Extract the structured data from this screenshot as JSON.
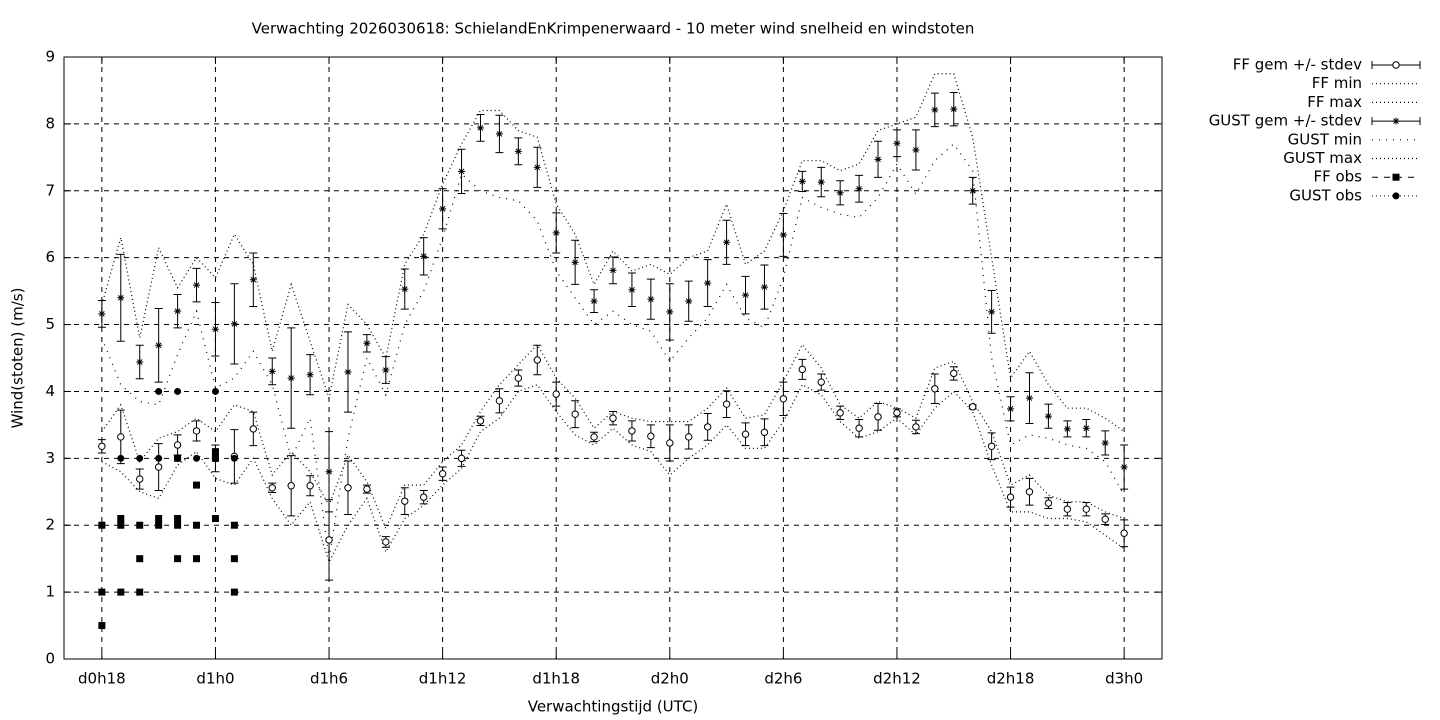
{
  "chart_data": {
    "type": "errorbar",
    "title": "Verwachting 2026030618: SchielandEnKrimpenerwaard - 10 meter wind snelheid en windstoten",
    "x_label": "Verwachtingstijd (UTC)",
    "y_label": "Wind(stoten) (m/s)",
    "xlim": [
      16,
      74
    ],
    "ylim": [
      0,
      9
    ],
    "xticks": [
      {
        "value": 18,
        "label": "d0h18"
      },
      {
        "value": 24,
        "label": "d1h0"
      },
      {
        "value": 30,
        "label": "d1h6"
      },
      {
        "value": 36,
        "label": "d1h12"
      },
      {
        "value": 42,
        "label": "d1h18"
      },
      {
        "value": 48,
        "label": "d2h0"
      },
      {
        "value": 54,
        "label": "d2h6"
      },
      {
        "value": 60,
        "label": "d2h12"
      },
      {
        "value": 66,
        "label": "d2h18"
      },
      {
        "value": 72,
        "label": "d3h0"
      }
    ],
    "yticks": [
      0,
      1,
      2,
      3,
      4,
      5,
      6,
      7,
      8,
      9
    ],
    "grid": true,
    "legend": "outside-top-right",
    "x": [
      18,
      19,
      20,
      21,
      22,
      23,
      24,
      25,
      26,
      27,
      28,
      29,
      30,
      31,
      32,
      33,
      34,
      35,
      36,
      37,
      38,
      39,
      40,
      41,
      42,
      43,
      44,
      45,
      46,
      47,
      48,
      49,
      50,
      51,
      52,
      53,
      54,
      55,
      56,
      57,
      58,
      59,
      60,
      61,
      62,
      63,
      64,
      65,
      66,
      67,
      68,
      69,
      70,
      71,
      72
    ],
    "series": [
      {
        "name": "FF gem +/- stdev",
        "color": "#000000",
        "style": "errorbar",
        "marker": "open-circle",
        "values": [
          3.18,
          3.32,
          2.69,
          2.87,
          3.2,
          3.41,
          3.0,
          3.03,
          3.44,
          2.56,
          2.59,
          2.59,
          1.78,
          2.56,
          2.54,
          1.75,
          2.36,
          2.42,
          2.77,
          3.0,
          3.56,
          3.86,
          4.2,
          4.47,
          3.96,
          3.66,
          3.32,
          3.6,
          3.41,
          3.33,
          3.23,
          3.32,
          3.47,
          3.81,
          3.36,
          3.39,
          3.89,
          4.33,
          4.14,
          3.68,
          3.45,
          3.62,
          3.68,
          3.47,
          4.04,
          4.27,
          3.77,
          3.18,
          2.42,
          2.5,
          2.33,
          2.24,
          2.24,
          2.09,
          1.88
        ],
        "errors": [
          0.1,
          0.4,
          0.15,
          0.35,
          0.15,
          0.15,
          0.2,
          0.4,
          0.25,
          0.07,
          0.45,
          0.15,
          0.6,
          0.4,
          0.06,
          0.08,
          0.2,
          0.1,
          0.1,
          0.12,
          0.07,
          0.18,
          0.12,
          0.22,
          0.18,
          0.2,
          0.07,
          0.1,
          0.15,
          0.17,
          0.27,
          0.18,
          0.2,
          0.2,
          0.17,
          0.2,
          0.25,
          0.15,
          0.12,
          0.1,
          0.13,
          0.2,
          0.06,
          0.1,
          0.22,
          0.1,
          0.03,
          0.2,
          0.15,
          0.2,
          0.08,
          0.1,
          0.1,
          0.08,
          0.2
        ]
      },
      {
        "name": "FF min",
        "color": "#000000",
        "style": "dotted",
        "values": [
          2.95,
          2.8,
          2.5,
          2.4,
          2.9,
          3.1,
          2.7,
          2.6,
          3.0,
          2.4,
          2.0,
          2.35,
          1.45,
          2.0,
          2.4,
          1.6,
          2.1,
          2.3,
          2.6,
          2.85,
          3.4,
          3.6,
          4.0,
          4.1,
          3.7,
          3.35,
          3.2,
          3.45,
          3.2,
          3.1,
          2.75,
          3.0,
          3.2,
          3.5,
          3.15,
          3.15,
          3.55,
          4.1,
          3.95,
          3.55,
          3.3,
          3.4,
          3.6,
          3.35,
          3.75,
          4.0,
          3.7,
          2.9,
          2.2,
          2.2,
          2.1,
          2.1,
          2.05,
          1.85,
          1.65
        ]
      },
      {
        "name": "FF max",
        "color": "#000000",
        "style": "dotted",
        "values": [
          3.4,
          3.8,
          2.95,
          3.3,
          3.4,
          3.6,
          3.4,
          3.8,
          3.7,
          2.75,
          3.1,
          2.8,
          2.3,
          3.05,
          2.65,
          1.95,
          2.6,
          2.6,
          2.95,
          3.2,
          3.7,
          4.1,
          4.4,
          4.7,
          4.2,
          3.9,
          3.45,
          3.7,
          3.6,
          3.55,
          3.55,
          3.55,
          3.75,
          4.05,
          3.6,
          3.65,
          4.15,
          4.7,
          4.35,
          3.8,
          3.6,
          3.85,
          3.75,
          3.6,
          4.35,
          4.45,
          3.85,
          3.4,
          2.6,
          2.75,
          2.45,
          2.35,
          2.35,
          2.2,
          2.1
        ]
      },
      {
        "name": "GUST gem +/- stdev",
        "color": "#000000",
        "style": "errorbar",
        "marker": "star",
        "values": [
          5.16,
          5.4,
          4.44,
          4.69,
          5.2,
          5.59,
          4.93,
          5.01,
          5.67,
          4.3,
          4.2,
          4.25,
          2.8,
          4.29,
          4.72,
          4.32,
          5.53,
          6.02,
          6.73,
          7.29,
          7.94,
          7.85,
          7.59,
          7.35,
          6.37,
          5.93,
          5.35,
          5.81,
          5.52,
          5.38,
          5.19,
          5.35,
          5.62,
          6.23,
          5.44,
          5.56,
          6.34,
          7.14,
          7.13,
          6.97,
          7.03,
          7.47,
          7.71,
          7.61,
          8.21,
          8.22,
          7.0,
          5.19,
          3.74,
          3.9,
          3.63,
          3.44,
          3.45,
          3.23,
          2.87
        ],
        "errors": [
          0.2,
          0.65,
          0.25,
          0.55,
          0.25,
          0.25,
          0.4,
          0.6,
          0.4,
          0.2,
          0.75,
          0.3,
          0.6,
          0.6,
          0.13,
          0.2,
          0.3,
          0.28,
          0.3,
          0.33,
          0.2,
          0.28,
          0.2,
          0.3,
          0.3,
          0.33,
          0.17,
          0.2,
          0.25,
          0.3,
          0.42,
          0.3,
          0.35,
          0.33,
          0.28,
          0.33,
          0.32,
          0.15,
          0.22,
          0.18,
          0.2,
          0.27,
          0.2,
          0.3,
          0.25,
          0.25,
          0.2,
          0.32,
          0.18,
          0.38,
          0.18,
          0.12,
          0.13,
          0.18,
          0.33
        ]
      },
      {
        "name": "GUST min",
        "color": "#000000",
        "style": "sparse-dotted",
        "values": [
          4.8,
          4.1,
          3.85,
          3.8,
          4.55,
          5.2,
          4.05,
          4.2,
          4.6,
          4.1,
          3.0,
          3.6,
          1.5,
          3.3,
          4.5,
          3.95,
          5.0,
          5.5,
          6.3,
          7.25,
          7.0,
          6.9,
          6.85,
          6.55,
          5.8,
          5.4,
          5.0,
          5.2,
          5.0,
          4.9,
          4.45,
          4.8,
          5.1,
          5.6,
          5.1,
          4.95,
          5.7,
          6.9,
          6.75,
          6.65,
          6.6,
          6.9,
          7.4,
          6.95,
          7.45,
          7.7,
          7.3,
          4.5,
          3.2,
          3.35,
          3.3,
          3.2,
          3.15,
          2.95,
          2.45
        ]
      },
      {
        "name": "GUST max",
        "color": "#000000",
        "style": "dotted",
        "values": [
          5.3,
          6.3,
          4.8,
          6.15,
          5.55,
          6.0,
          5.7,
          6.35,
          5.9,
          4.6,
          5.6,
          4.75,
          3.9,
          5.3,
          5.0,
          4.5,
          5.9,
          6.35,
          7.1,
          7.7,
          8.2,
          8.2,
          7.9,
          7.8,
          6.8,
          6.35,
          5.6,
          6.1,
          5.8,
          5.9,
          5.75,
          6.0,
          6.1,
          6.8,
          5.9,
          6.1,
          6.7,
          7.45,
          7.45,
          7.3,
          7.4,
          7.9,
          8.0,
          8.1,
          8.75,
          8.75,
          7.8,
          6.0,
          4.2,
          4.6,
          4.1,
          3.75,
          3.75,
          3.6,
          3.4
        ]
      },
      {
        "name": "FF obs",
        "color": "#000000",
        "style": "points",
        "marker": "filled-square",
        "x": [
          18,
          18,
          18,
          19,
          19,
          19,
          20,
          20,
          20,
          21,
          21,
          22,
          22,
          22,
          22,
          23,
          23,
          23,
          24,
          24,
          24,
          25,
          25,
          25
        ],
        "values": [
          2.0,
          1.0,
          0.5,
          2.1,
          2.0,
          1.0,
          2.0,
          1.5,
          1.0,
          2.1,
          2.0,
          3.0,
          2.1,
          2.0,
          1.5,
          2.6,
          2.0,
          1.5,
          3.1,
          3.0,
          2.1,
          2.0,
          1.5,
          1.0
        ]
      },
      {
        "name": "GUST obs",
        "color": "#000000",
        "style": "points",
        "marker": "filled-circle",
        "x": [
          19,
          20,
          21,
          21,
          22,
          22,
          23,
          24,
          24,
          25
        ],
        "values": [
          3.0,
          3.0,
          4.0,
          3.0,
          4.0,
          3.0,
          3.0,
          4.0,
          3.0,
          3.0
        ]
      }
    ]
  }
}
